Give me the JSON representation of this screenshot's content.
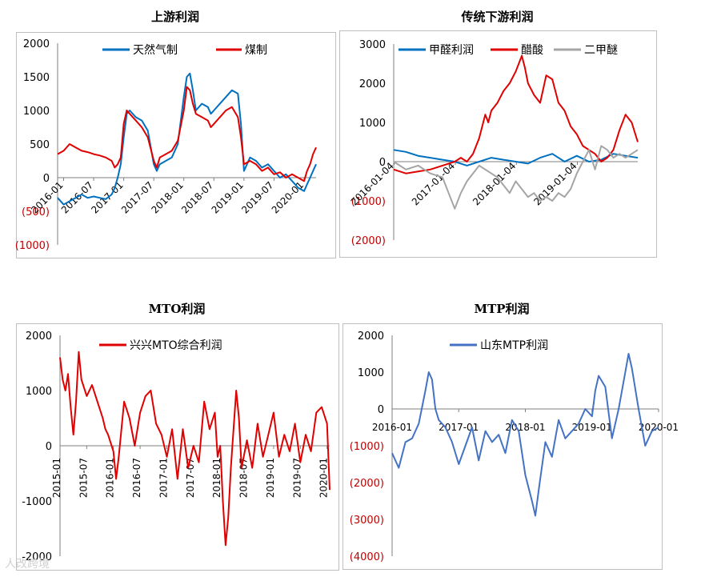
{
  "watermark": "人改跨境",
  "chart_data": [
    {
      "id": "c1",
      "type": "line",
      "title": "上游利润",
      "ylim": [
        -1000,
        2000
      ],
      "yticks": [
        2000,
        1500,
        1000,
        500,
        0,
        -500,
        -1000
      ],
      "ytick_labels": [
        "2000",
        "1500",
        "1000",
        "500",
        "0",
        "(500)",
        "(1000)"
      ],
      "x_range": [
        2015.9,
        2020.2
      ],
      "xtick_values": [
        2016.0,
        2016.5,
        2017.0,
        2017.5,
        2018.0,
        2018.5,
        2019.0,
        2019.5,
        2020.0
      ],
      "xtick_labels": [
        "2016-01",
        "2016-07",
        "2017-01",
        "2017-07",
        "2018-01",
        "2018-07",
        "2019-01",
        "2019-07",
        "2020-01"
      ],
      "series": [
        {
          "name": "天然气制",
          "color": "#0070C0",
          "x": [
            2015.9,
            2016.0,
            2016.1,
            2016.2,
            2016.3,
            2016.4,
            2016.5,
            2016.6,
            2016.7,
            2016.8,
            2016.85,
            2016.9,
            2016.95,
            2017.0,
            2017.05,
            2017.1,
            2017.2,
            2017.3,
            2017.4,
            2017.5,
            2017.55,
            2017.6,
            2017.7,
            2017.8,
            2017.9,
            2018.0,
            2018.05,
            2018.1,
            2018.15,
            2018.2,
            2018.3,
            2018.4,
            2018.45,
            2018.5,
            2018.6,
            2018.7,
            2018.8,
            2018.9,
            2018.95,
            2019.0,
            2019.1,
            2019.2,
            2019.3,
            2019.4,
            2019.5,
            2019.6,
            2019.7,
            2019.8,
            2019.9,
            2020.0,
            2020.05,
            2020.1,
            2020.15,
            2020.2
          ],
          "values": [
            -300,
            -400,
            -350,
            -300,
            -250,
            -300,
            -280,
            -300,
            -320,
            -250,
            -150,
            0,
            200,
            600,
            950,
            1000,
            900,
            850,
            700,
            200,
            100,
            200,
            250,
            300,
            500,
            1200,
            1500,
            1550,
            1300,
            1000,
            1100,
            1050,
            950,
            1000,
            1100,
            1200,
            1300,
            1250,
            800,
            100,
            300,
            250,
            150,
            200,
            100,
            0,
            50,
            -50,
            -150,
            -200,
            -100,
            0,
            100,
            200
          ]
        },
        {
          "name": "煤制",
          "color": "#E00000",
          "x": [
            2015.9,
            2016.0,
            2016.1,
            2016.2,
            2016.3,
            2016.4,
            2016.5,
            2016.6,
            2016.7,
            2016.8,
            2016.85,
            2016.9,
            2016.95,
            2017.0,
            2017.05,
            2017.1,
            2017.2,
            2017.3,
            2017.4,
            2017.5,
            2017.55,
            2017.6,
            2017.7,
            2017.8,
            2017.9,
            2018.0,
            2018.05,
            2018.1,
            2018.15,
            2018.2,
            2018.3,
            2018.4,
            2018.45,
            2018.5,
            2018.6,
            2018.7,
            2018.8,
            2018.9,
            2018.95,
            2019.0,
            2019.1,
            2019.2,
            2019.3,
            2019.4,
            2019.5,
            2019.6,
            2019.7,
            2019.8,
            2019.9,
            2020.0,
            2020.05,
            2020.1,
            2020.15,
            2020.2
          ],
          "values": [
            350,
            400,
            500,
            450,
            400,
            380,
            350,
            330,
            300,
            250,
            150,
            200,
            300,
            800,
            1000,
            950,
            850,
            750,
            600,
            250,
            150,
            300,
            350,
            400,
            550,
            1000,
            1350,
            1300,
            1100,
            950,
            900,
            850,
            750,
            800,
            900,
            1000,
            1050,
            900,
            600,
            200,
            250,
            200,
            100,
            150,
            50,
            80,
            0,
            50,
            0,
            -50,
            100,
            200,
            350,
            450
          ]
        }
      ]
    },
    {
      "id": "c2",
      "type": "line",
      "title": "传统下游利润",
      "ylim": [
        -2000,
        3000
      ],
      "yticks": [
        3000,
        2000,
        1000,
        0,
        -1000,
        -2000
      ],
      "ytick_labels": [
        "3000",
        "2000",
        "1000",
        "0",
        "(1000)",
        "(2000)"
      ],
      "x_range": [
        2016.0,
        2020.0
      ],
      "xtick_values": [
        2016.01,
        2017.01,
        2018.01,
        2019.01
      ],
      "xtick_labels": [
        "2016-01-04",
        "2017-01-04",
        "2018-01-04",
        "2019-01-04"
      ],
      "series": [
        {
          "name": "甲醛利润",
          "color": "#0070C0",
          "x": [
            2016.0,
            2016.2,
            2016.4,
            2016.6,
            2016.8,
            2017.0,
            2017.2,
            2017.4,
            2017.6,
            2017.8,
            2018.0,
            2018.2,
            2018.4,
            2018.6,
            2018.8,
            2019.0,
            2019.2,
            2019.4,
            2019.6,
            2019.8,
            2020.0
          ],
          "values": [
            300,
            250,
            150,
            100,
            50,
            0,
            -100,
            0,
            100,
            50,
            0,
            -50,
            100,
            200,
            0,
            150,
            0,
            50,
            200,
            150,
            100
          ]
        },
        {
          "name": "醋酸",
          "color": "#E00000",
          "x": [
            2016.0,
            2016.2,
            2016.4,
            2016.6,
            2016.8,
            2016.9,
            2017.0,
            2017.1,
            2017.2,
            2017.3,
            2017.4,
            2017.5,
            2017.55,
            2017.6,
            2017.7,
            2017.8,
            2017.9,
            2018.0,
            2018.05,
            2018.1,
            2018.15,
            2018.2,
            2018.3,
            2018.4,
            2018.5,
            2018.6,
            2018.7,
            2018.8,
            2018.9,
            2019.0,
            2019.1,
            2019.2,
            2019.3,
            2019.4,
            2019.5,
            2019.6,
            2019.7,
            2019.8,
            2019.9,
            2020.0
          ],
          "values": [
            -200,
            -300,
            -250,
            -200,
            -100,
            -50,
            0,
            100,
            0,
            200,
            600,
            1200,
            1000,
            1300,
            1500,
            1800,
            2000,
            2300,
            2500,
            2700,
            2400,
            2000,
            1700,
            1500,
            2200,
            2100,
            1500,
            1300,
            900,
            700,
            400,
            300,
            200,
            0,
            100,
            300,
            800,
            1200,
            1000,
            500
          ]
        },
        {
          "name": "二甲醚",
          "color": "#A5A5A5",
          "x": [
            2016.0,
            2016.2,
            2016.4,
            2016.6,
            2016.8,
            2016.9,
            2017.0,
            2017.1,
            2017.2,
            2017.3,
            2017.4,
            2017.5,
            2017.6,
            2017.7,
            2017.8,
            2017.9,
            2018.0,
            2018.1,
            2018.2,
            2018.3,
            2018.4,
            2018.5,
            2018.6,
            2018.7,
            2018.8,
            2018.9,
            2019.0,
            2019.1,
            2019.2,
            2019.3,
            2019.4,
            2019.5,
            2019.6,
            2019.7,
            2019.8,
            2019.9,
            2020.0
          ],
          "values": [
            0,
            -200,
            -100,
            -300,
            -400,
            -800,
            -1200,
            -800,
            -500,
            -300,
            -100,
            -200,
            -300,
            -400,
            -600,
            -800,
            -500,
            -700,
            -900,
            -800,
            -1000,
            -900,
            -1000,
            -800,
            -900,
            -700,
            -300,
            0,
            300,
            -200,
            400,
            300,
            100,
            200,
            100,
            200,
            300
          ]
        }
      ]
    },
    {
      "id": "c3",
      "type": "line",
      "title": "MTO利润",
      "ylim": [
        -2000,
        2000
      ],
      "yticks": [
        2000,
        1000,
        0,
        -1000,
        -2000
      ],
      "ytick_labels": [
        "2000",
        "1000",
        "0",
        "-1000",
        "-2000"
      ],
      "x_range": [
        2015.0,
        2020.05
      ],
      "xtick_values": [
        2015.0,
        2015.5,
        2016.0,
        2016.5,
        2017.0,
        2017.5,
        2018.0,
        2018.5,
        2019.0,
        2019.5,
        2020.0
      ],
      "xtick_labels": [
        "2015-01",
        "2015-07",
        "2016-01",
        "2016-07",
        "2017-01",
        "2017-07",
        "2018-01",
        "2018-07",
        "2019-01",
        "2019-07",
        "2020-01"
      ],
      "series": [
        {
          "name": "兴兴MTO综合利润",
          "color": "#E00000",
          "x": [
            2015.0,
            2015.05,
            2015.1,
            2015.15,
            2015.2,
            2015.25,
            2015.3,
            2015.35,
            2015.4,
            2015.5,
            2015.6,
            2015.7,
            2015.8,
            2015.85,
            2015.9,
            2016.0,
            2016.05,
            2016.1,
            2016.2,
            2016.3,
            2016.4,
            2016.5,
            2016.6,
            2016.7,
            2016.8,
            2016.9,
            2017.0,
            2017.1,
            2017.2,
            2017.3,
            2017.4,
            2017.5,
            2017.6,
            2017.7,
            2017.8,
            2017.9,
            2017.95,
            2018.0,
            2018.05,
            2018.1,
            2018.15,
            2018.2,
            2018.3,
            2018.35,
            2018.4,
            2018.5,
            2018.6,
            2018.7,
            2018.8,
            2018.9,
            2019.0,
            2019.1,
            2019.2,
            2019.3,
            2019.4,
            2019.5,
            2019.6,
            2019.7,
            2019.8,
            2019.9,
            2020.0,
            2020.05
          ],
          "values": [
            1600,
            1200,
            1000,
            1300,
            700,
            200,
            800,
            1700,
            1200,
            900,
            1100,
            800,
            500,
            300,
            200,
            -100,
            -600,
            -200,
            800,
            500,
            0,
            600,
            900,
            1000,
            400,
            200,
            -200,
            300,
            -600,
            300,
            -400,
            0,
            -300,
            800,
            300,
            600,
            -200,
            0,
            -1000,
            -1800,
            -1300,
            -400,
            1000,
            500,
            -400,
            100,
            -400,
            400,
            -200,
            200,
            600,
            -200,
            200,
            -100,
            400,
            -300,
            200,
            -100,
            600,
            700,
            400,
            -800
          ]
        }
      ]
    },
    {
      "id": "c4",
      "type": "line",
      "title": "MTP利润",
      "ylim": [
        -4000,
        2000
      ],
      "yticks": [
        2000,
        1000,
        0,
        -1000,
        -2000,
        -3000,
        -4000
      ],
      "ytick_labels": [
        "2000",
        "1000",
        "0",
        "(1000)",
        "(2000)",
        "(3000)",
        "(4000)"
      ],
      "x_range": [
        2016.0,
        2020.0
      ],
      "xtick_values": [
        2016.0,
        2017.0,
        2018.0,
        2019.0,
        2020.0
      ],
      "xtick_labels": [
        "2016-01",
        "2017-01",
        "2018-01",
        "2019-01",
        "2020-01"
      ],
      "series": [
        {
          "name": "山东MTP利润",
          "color": "#4472C4",
          "x": [
            2016.0,
            2016.1,
            2016.2,
            2016.3,
            2016.4,
            2016.5,
            2016.55,
            2016.6,
            2016.65,
            2016.7,
            2016.8,
            2016.9,
            2017.0,
            2017.1,
            2017.2,
            2017.3,
            2017.4,
            2017.5,
            2017.6,
            2017.7,
            2017.8,
            2017.9,
            2018.0,
            2018.1,
            2018.15,
            2018.2,
            2018.3,
            2018.4,
            2018.5,
            2018.6,
            2018.7,
            2018.8,
            2018.9,
            2019.0,
            2019.05,
            2019.1,
            2019.2,
            2019.3,
            2019.4,
            2019.5,
            2019.55,
            2019.6,
            2019.7,
            2019.8,
            2019.9,
            2020.0
          ],
          "values": [
            -1200,
            -1600,
            -900,
            -800,
            -400,
            500,
            1000,
            800,
            0,
            -300,
            -500,
            -900,
            -1500,
            -1000,
            -500,
            -1400,
            -600,
            -900,
            -700,
            -1200,
            -300,
            -600,
            -1800,
            -2500,
            -2900,
            -2200,
            -900,
            -1300,
            -300,
            -800,
            -600,
            -400,
            0,
            -200,
            500,
            900,
            600,
            -800,
            0,
            1000,
            1500,
            1100,
            0,
            -1000,
            -600,
            -500
          ]
        }
      ]
    }
  ]
}
